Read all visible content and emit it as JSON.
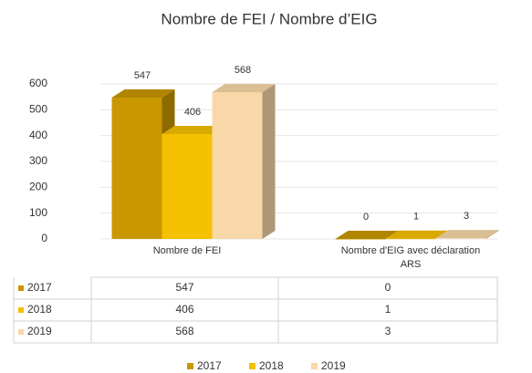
{
  "chart_data": {
    "type": "bar",
    "title": "Nombre de FEI / Nombre d’EIG",
    "categories": [
      "Nombre de FEI",
      "Nombre d'EIG avec déclaration ARS"
    ],
    "series": [
      {
        "name": "2017",
        "color": "#c99700",
        "values": [
          547,
          0
        ]
      },
      {
        "name": "2018",
        "color": "#f5c000",
        "values": [
          406,
          1
        ]
      },
      {
        "name": "2019",
        "color": "#f8d8a8",
        "values": [
          568,
          3
        ]
      }
    ],
    "ylim": [
      0,
      600
    ],
    "yticks": [
      0,
      100,
      200,
      300,
      400,
      500,
      600
    ],
    "grid": true,
    "legend": "bottom"
  }
}
